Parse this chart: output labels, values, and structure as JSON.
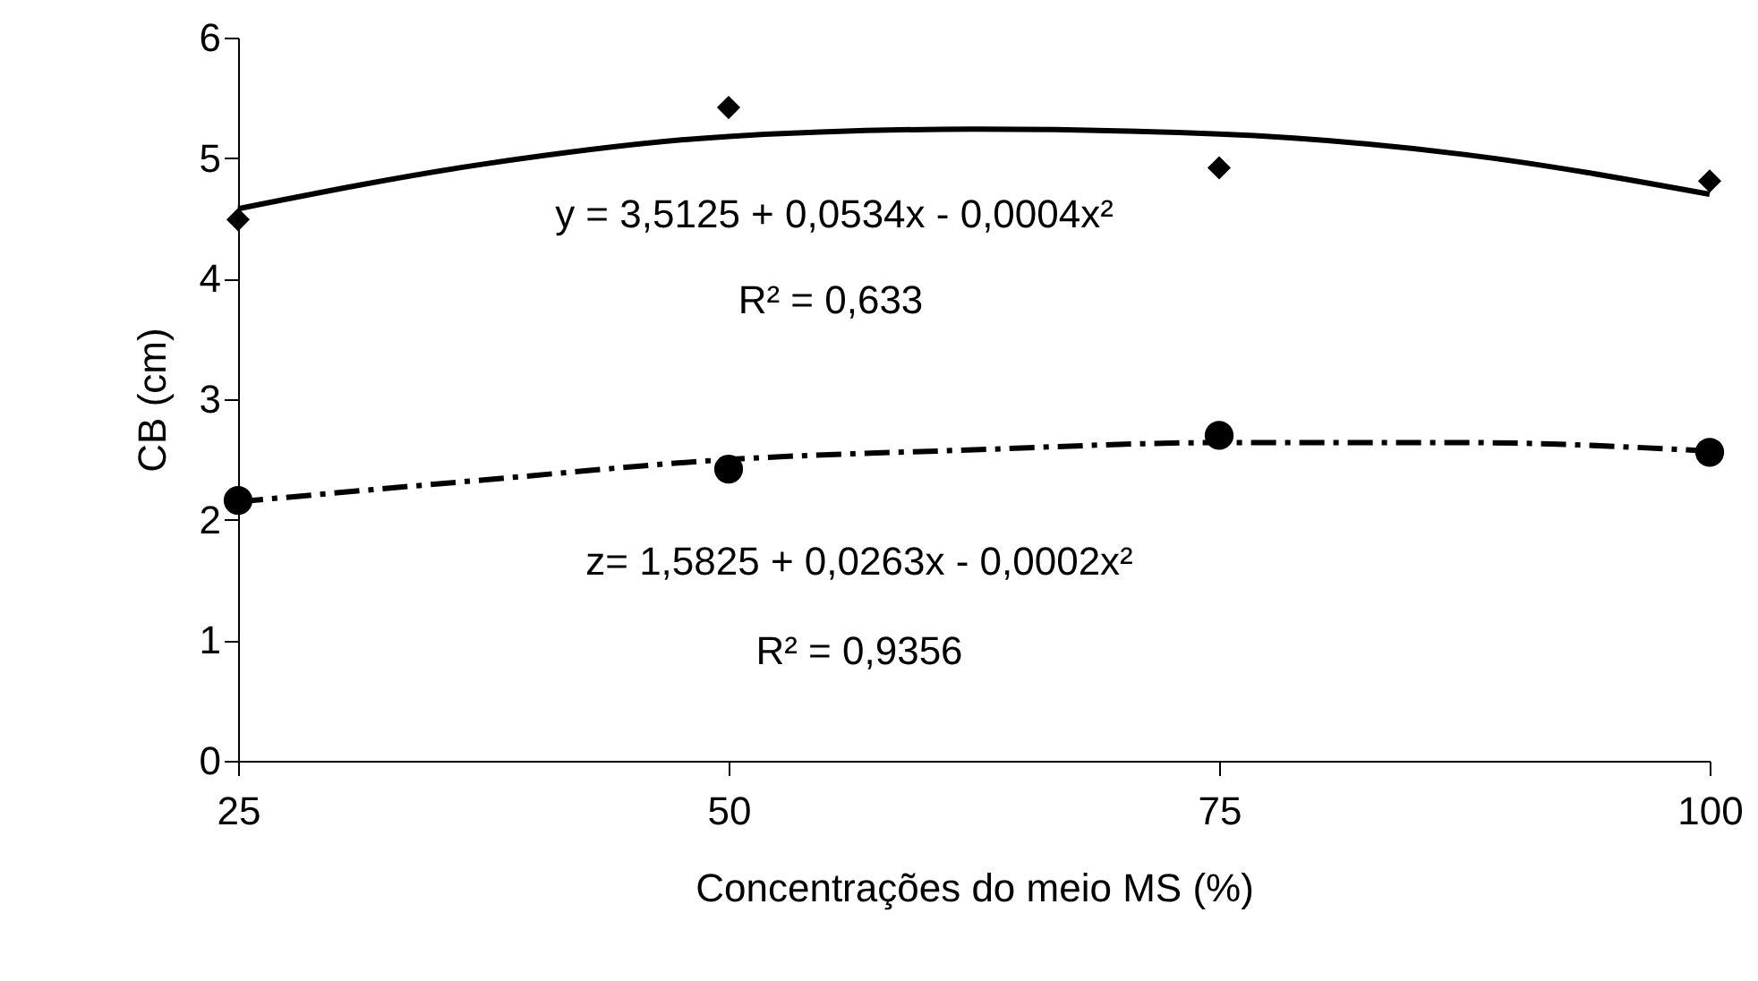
{
  "chart_data": {
    "type": "scatter",
    "xlabel": "Concentrações do meio MS (%)",
    "ylabel": "CB (cm)",
    "x": [
      25,
      50,
      75,
      100
    ],
    "series": [
      {
        "type": "scatter",
        "color": "#000000",
        "marker": "diamond",
        "values": [
          4.49,
          5.42,
          4.92,
          4.81
        ]
      },
      {
        "type": "scatter",
        "color": "#000000",
        "marker": "circle",
        "values": [
          2.16,
          2.42,
          2.7,
          2.56
        ]
      },
      {
        "type": "line",
        "color": "#000000",
        "line_style": "solid",
        "marker": "none",
        "x": [
          25,
          37.5,
          50,
          62.5,
          75,
          87.5,
          100
        ],
        "values": [
          4.58,
          4.95,
          5.18,
          5.24,
          5.2,
          5.03,
          4.7
        ]
      },
      {
        "type": "line",
        "color": "#000000",
        "line_style": "dashed",
        "marker": "none",
        "x": [
          25,
          37.5,
          50,
          62.5,
          75,
          87.5,
          100
        ],
        "values": [
          2.15,
          2.33,
          2.5,
          2.58,
          2.64,
          2.64,
          2.57
        ]
      }
    ],
    "xlim": [
      25,
      100
    ],
    "xticks": [
      25,
      50,
      75,
      100
    ],
    "ylim": [
      0,
      6
    ],
    "yticks": [
      0,
      1,
      2,
      3,
      4,
      5,
      6
    ],
    "grid": false,
    "annotations": [
      "y = 3,5125 + 0,0534x - 0,0004x²",
      "R² = 0,633",
      "z= 1,5825 + 0,0263x - 0,0002x²",
      "R² = 0,9356"
    ]
  }
}
